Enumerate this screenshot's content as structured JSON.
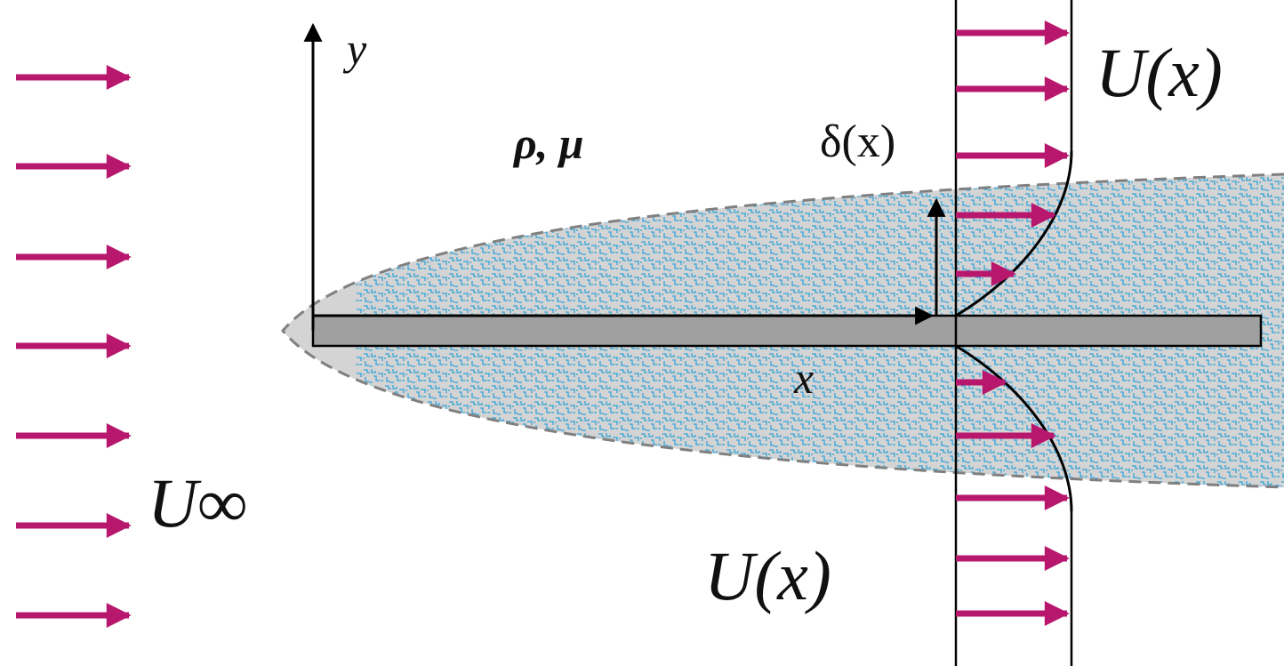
{
  "labels": {
    "y_axis": "y",
    "fluid_properties": "ρ, μ",
    "boundary_layer_thickness": "δ(x)",
    "velocity_top": "U(x)",
    "x_axis": "x",
    "freestream_velocity": "U∞",
    "velocity_bottom": "U(x)"
  }
}
